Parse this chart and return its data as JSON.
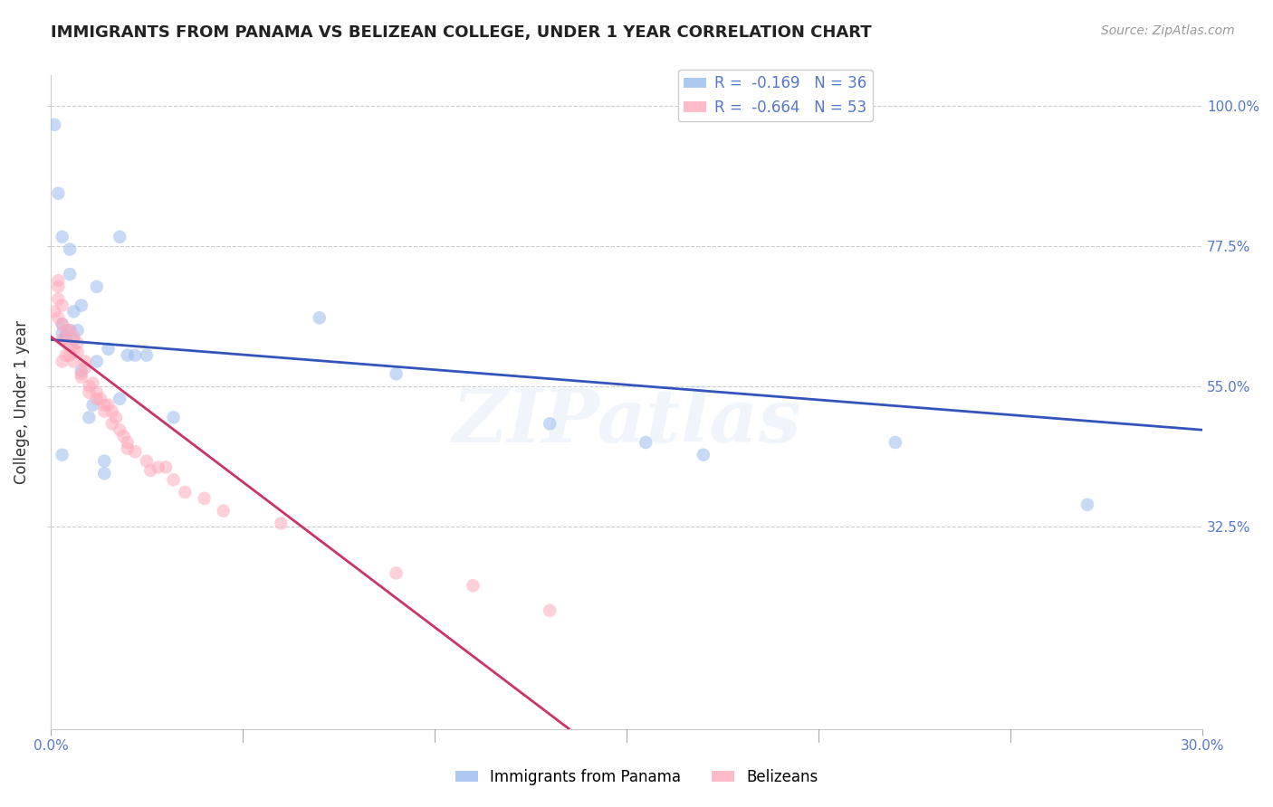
{
  "title": "IMMIGRANTS FROM PANAMA VS BELIZEAN COLLEGE, UNDER 1 YEAR CORRELATION CHART",
  "source": "Source: ZipAtlas.com",
  "ylabel": "College, Under 1 year",
  "ylabel_right_labels": [
    "100.0%",
    "77.5%",
    "55.0%",
    "32.5%"
  ],
  "ylabel_right_values": [
    1.0,
    0.775,
    0.55,
    0.325
  ],
  "legend_blue_r": "R =  -0.169",
  "legend_blue_n": "N = 36",
  "legend_pink_r": "R =  -0.664",
  "legend_pink_n": "N = 53",
  "legend_label_blue": "Immigrants from Panama",
  "legend_label_pink": "Belizeans",
  "blue_scatter_x": [
    0.001,
    0.002,
    0.003,
    0.003,
    0.003,
    0.004,
    0.005,
    0.005,
    0.005,
    0.006,
    0.006,
    0.007,
    0.008,
    0.008,
    0.01,
    0.011,
    0.012,
    0.012,
    0.014,
    0.014,
    0.015,
    0.018,
    0.018,
    0.02,
    0.022,
    0.025,
    0.032,
    0.003,
    0.004,
    0.07,
    0.09,
    0.13,
    0.155,
    0.17,
    0.22,
    0.27
  ],
  "blue_scatter_y": [
    0.97,
    0.86,
    0.79,
    0.65,
    0.635,
    0.63,
    0.77,
    0.73,
    0.64,
    0.67,
    0.625,
    0.64,
    0.68,
    0.575,
    0.5,
    0.52,
    0.71,
    0.59,
    0.43,
    0.41,
    0.61,
    0.79,
    0.53,
    0.6,
    0.6,
    0.6,
    0.5,
    0.44,
    0.63,
    0.66,
    0.57,
    0.49,
    0.46,
    0.44,
    0.46,
    0.36
  ],
  "pink_scatter_x": [
    0.001,
    0.002,
    0.002,
    0.002,
    0.002,
    0.003,
    0.003,
    0.003,
    0.003,
    0.004,
    0.004,
    0.004,
    0.005,
    0.005,
    0.005,
    0.006,
    0.006,
    0.006,
    0.007,
    0.007,
    0.008,
    0.008,
    0.009,
    0.009,
    0.01,
    0.01,
    0.011,
    0.012,
    0.012,
    0.013,
    0.014,
    0.014,
    0.015,
    0.016,
    0.016,
    0.017,
    0.018,
    0.019,
    0.02,
    0.02,
    0.022,
    0.025,
    0.026,
    0.028,
    0.03,
    0.032,
    0.035,
    0.04,
    0.045,
    0.06,
    0.09,
    0.11,
    0.13
  ],
  "pink_scatter_y": [
    0.67,
    0.72,
    0.71,
    0.69,
    0.66,
    0.68,
    0.65,
    0.625,
    0.59,
    0.64,
    0.62,
    0.6,
    0.64,
    0.615,
    0.6,
    0.63,
    0.61,
    0.59,
    0.62,
    0.605,
    0.57,
    0.565,
    0.59,
    0.58,
    0.55,
    0.54,
    0.555,
    0.54,
    0.53,
    0.53,
    0.52,
    0.51,
    0.52,
    0.51,
    0.49,
    0.5,
    0.48,
    0.47,
    0.46,
    0.45,
    0.445,
    0.43,
    0.415,
    0.42,
    0.42,
    0.4,
    0.38,
    0.37,
    0.35,
    0.33,
    0.25,
    0.23,
    0.19
  ],
  "blue_line_x": [
    0.0,
    0.3
  ],
  "blue_line_y": [
    0.625,
    0.48
  ],
  "pink_line_x": [
    0.0,
    0.135
  ],
  "pink_line_y": [
    0.63,
    0.0
  ],
  "xlim": [
    0.0,
    0.3
  ],
  "ylim": [
    0.0,
    1.05
  ],
  "xtick_positions": [
    0.0,
    0.3
  ],
  "xtick_labels": [
    "0.0%",
    "30.0%"
  ],
  "background_color": "#ffffff",
  "scatter_alpha": 0.55,
  "scatter_size": 110,
  "blue_color": "#99bbee",
  "pink_color": "#ffaabb",
  "blue_line_color": "#3355bb",
  "pink_line_color": "#cc3366",
  "grid_color": "#cccccc",
  "watermark_text": "ZIPatlas",
  "watermark_color": "#aaccee",
  "watermark_alpha": 0.18,
  "title_fontsize": 13,
  "source_fontsize": 10,
  "axis_label_fontsize": 12,
  "tick_fontsize": 11,
  "right_tick_color": "#5577cc"
}
